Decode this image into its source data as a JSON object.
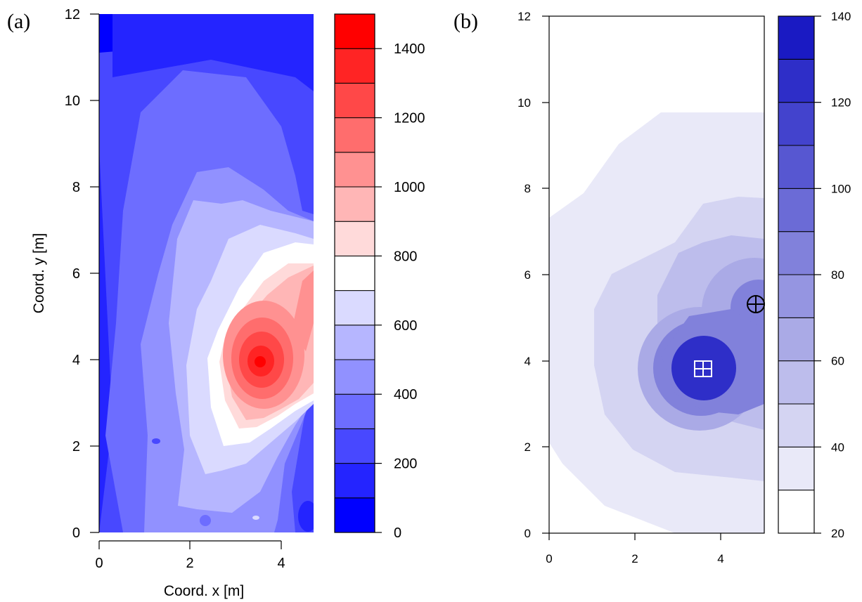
{
  "chart_data": [
    {
      "panel_label": "(a)",
      "type": "heatmap",
      "xlabel": "Coord. x [m]",
      "ylabel": "Coord. y [m]",
      "xlim": [
        0,
        4.7
      ],
      "ylim": [
        0,
        12
      ],
      "x_ticks": [
        "0",
        "2",
        "4"
      ],
      "y_ticks": [
        "0",
        "2",
        "4",
        "6",
        "8",
        "10",
        "12"
      ],
      "colorbar": {
        "range": [
          0,
          1500
        ],
        "levels": [
          0,
          100,
          200,
          300,
          400,
          500,
          600,
          700,
          800,
          900,
          1000,
          1100,
          1200,
          1300,
          1400,
          1500
        ],
        "tick_labels": [
          "0",
          "200",
          "400",
          "600",
          "800",
          "1000",
          "1200",
          "1400"
        ],
        "colors": [
          "#0000ff",
          "#2424ff",
          "#4848ff",
          "#6d6dff",
          "#9191ff",
          "#b6b6ff",
          "#dadaff",
          "#ffffff",
          "#ffdada",
          "#ffb6b6",
          "#ff9191",
          "#ff6d6d",
          "#ff4848",
          "#ff2424",
          "#ff0000"
        ]
      },
      "peak": {
        "x": 3.55,
        "y": 3.9
      }
    },
    {
      "panel_label": "(b)",
      "type": "heatmap",
      "xlabel": "",
      "ylabel": "",
      "xlim": [
        0,
        5
      ],
      "ylim": [
        0,
        12
      ],
      "x_ticks": [
        "0",
        "2",
        "4"
      ],
      "y_ticks": [
        "0",
        "2",
        "4",
        "6",
        "8",
        "10",
        "12"
      ],
      "colorbar": {
        "range": [
          20,
          140
        ],
        "levels": [
          20,
          30,
          40,
          50,
          60,
          70,
          80,
          90,
          100,
          110,
          120,
          130,
          140
        ],
        "tick_labels": [
          "20",
          "40",
          "60",
          "80",
          "100",
          "120",
          "140"
        ],
        "colors": [
          "#ffffff",
          "#e9e9f8",
          "#d4d4f2",
          "#bdbdec",
          "#aaaae6",
          "#9595e1",
          "#8181db",
          "#6b6bd6",
          "#5757d1",
          "#4343cd",
          "#2e2ec8",
          "#1a1ac3"
        ]
      },
      "markers": [
        {
          "symbol": "square-cross",
          "x": 3.6,
          "y": 3.8
        },
        {
          "symbol": "circle-cross",
          "x": 4.8,
          "y": 5.3
        }
      ]
    }
  ]
}
